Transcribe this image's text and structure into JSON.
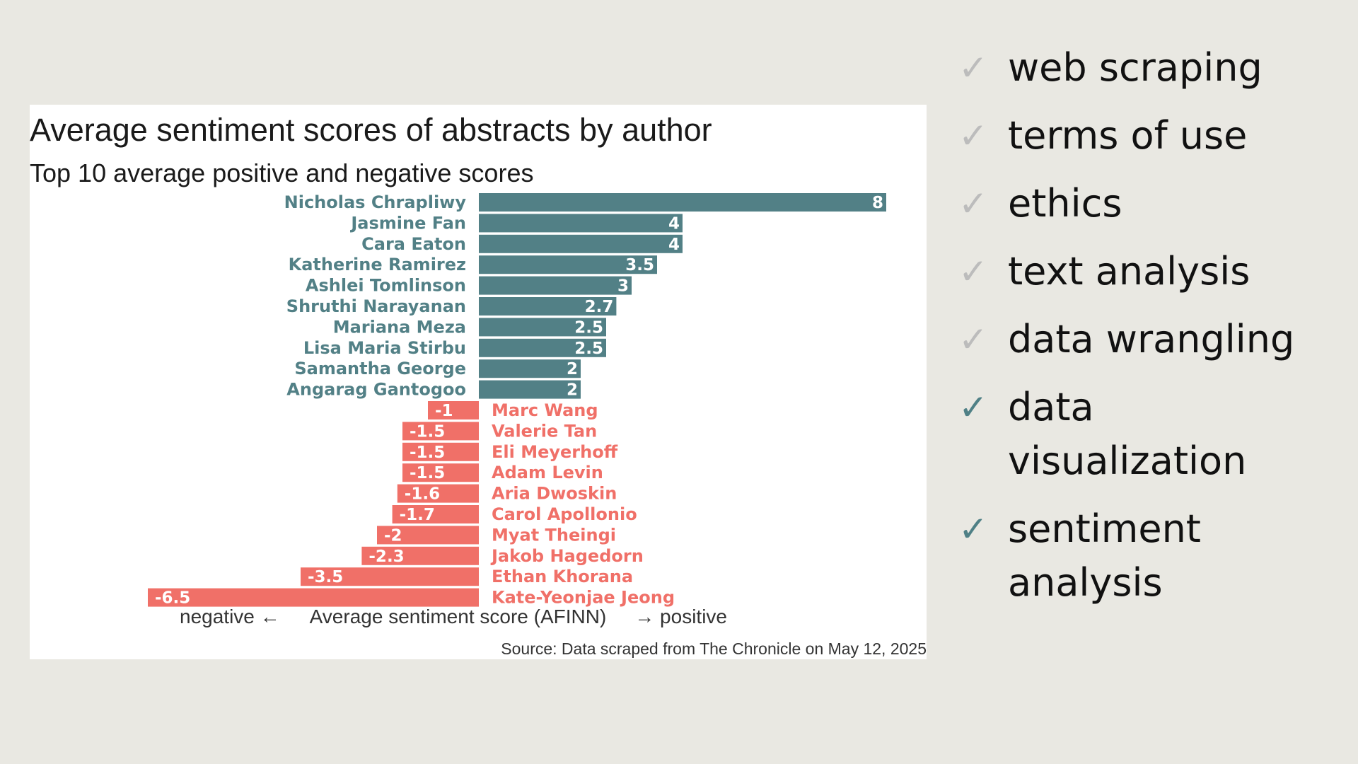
{
  "chart_data": {
    "type": "bar",
    "orientation": "horizontal",
    "title": "Average sentiment scores of abstracts by author",
    "subtitle": "Top 10 average positive and negative scores",
    "xlabel_left": "negative ←",
    "xlabel": "Average sentiment score (AFINN)",
    "xlabel_right": "→ positive",
    "source": "Source: Data scraped from The Chronicle on May 12, 2025",
    "xlim": [
      -6.5,
      8
    ],
    "colors": {
      "positive": "#528086",
      "negative": "#f07068"
    },
    "categories": [
      "Nicholas Chrapliwy",
      "Jasmine Fan",
      "Cara Eaton",
      "Katherine Ramirez",
      "Ashlei Tomlinson",
      "Shruthi Narayanan",
      "Mariana Meza",
      "Lisa Maria Stirbu",
      "Samantha George",
      "Angarag Gantogoo",
      "Marc Wang",
      "Valerie Tan",
      "Eli Meyerhoff",
      "Adam Levin",
      "Aria Dwoskin",
      "Carol Apollonio",
      "Myat Theingi",
      "Jakob Hagedorn",
      "Ethan Khorana",
      "Kate-Yeonjae Jeong"
    ],
    "values": [
      8,
      4,
      4,
      3.5,
      3,
      2.7,
      2.5,
      2.5,
      2,
      2,
      -1,
      -1.5,
      -1.5,
      -1.5,
      -1.6,
      -1.7,
      -2,
      -2.3,
      -3.5,
      -6.5
    ]
  },
  "checklist": {
    "items": [
      {
        "label": "web scraping",
        "icon": "check-icon",
        "done": false
      },
      {
        "label": "terms of use",
        "icon": "check-icon",
        "done": false
      },
      {
        "label": "ethics",
        "icon": "check-icon",
        "done": false
      },
      {
        "label": "text analysis",
        "icon": "check-icon",
        "done": false
      },
      {
        "label": "data wrangling",
        "icon": "check-icon",
        "done": false
      },
      {
        "label": "data visualization",
        "icon": "check-icon",
        "done": true
      },
      {
        "label": "sentiment analysis",
        "icon": "check-icon",
        "done": true
      }
    ],
    "check_glyph": "✓",
    "colors": {
      "done": "#4f8086",
      "pending": "#bcbcbc"
    }
  }
}
